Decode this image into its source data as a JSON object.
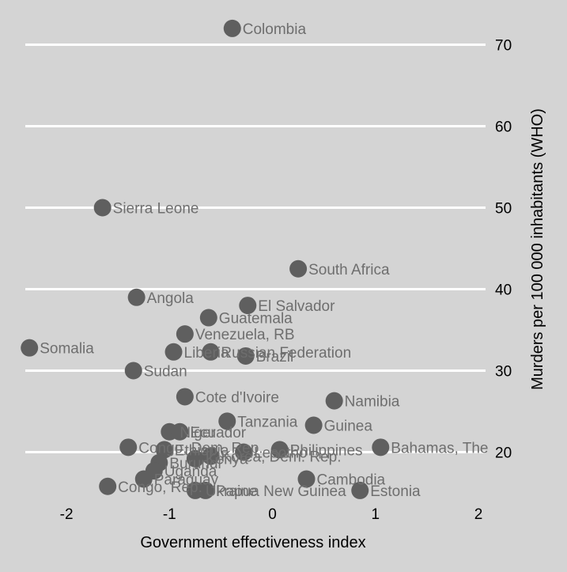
{
  "colors": {
    "background": "#d4d4d4",
    "gridline": "#ffffff",
    "marker": "#5f5f5f",
    "label_text": "#6e6e6e",
    "axis_text": "#000000"
  },
  "chart_data": {
    "type": "scatter",
    "xlabel": "Government effectiveness index",
    "ylabel": "Murders per 100 000 inhabitants (WHO)",
    "xlim": [
      -2.4,
      2.0
    ],
    "ylim": [
      15,
      75
    ],
    "x_ticks": [
      -2,
      -1,
      0,
      1,
      2
    ],
    "y_ticks": [
      20,
      30,
      40,
      50,
      60,
      70
    ],
    "x_tick_labels": [
      "-2",
      "-1",
      "0",
      "1",
      "2"
    ],
    "y_tick_labels": [
      "20",
      "30",
      "40",
      "50",
      "60",
      "70"
    ],
    "grid": "horizontal",
    "y_axis_side": "right",
    "points": [
      {
        "label": "Colombia",
        "x": -0.39,
        "y": 72.0
      },
      {
        "label": "Sierra Leone",
        "x": -1.65,
        "y": 50.0
      },
      {
        "label": "South Africa",
        "x": 0.25,
        "y": 42.5
      },
      {
        "label": "Angola",
        "x": -1.32,
        "y": 39.0
      },
      {
        "label": "El Salvador",
        "x": -0.24,
        "y": 38.0
      },
      {
        "label": "Guatemala",
        "x": -0.62,
        "y": 36.5
      },
      {
        "label": "Venezuela, RB",
        "x": -0.85,
        "y": 34.5
      },
      {
        "label": "Somalia",
        "x": -2.36,
        "y": 32.8
      },
      {
        "label": "Liberia",
        "x": -0.96,
        "y": 32.3
      },
      {
        "label": "Russian Federation",
        "x": -0.6,
        "y": 32.3
      },
      {
        "label": "Brazil",
        "x": -0.26,
        "y": 31.8
      },
      {
        "label": "Sudan",
        "x": -1.35,
        "y": 30.0
      },
      {
        "label": "Cote d'Ivoire",
        "x": -0.85,
        "y": 26.8
      },
      {
        "label": "Namibia",
        "x": 0.6,
        "y": 26.3
      },
      {
        "label": "Tanzania",
        "x": -0.44,
        "y": 23.8
      },
      {
        "label": "Guinea",
        "x": 0.4,
        "y": 23.3
      },
      {
        "label": "Niger",
        "x": -1.0,
        "y": 22.5
      },
      {
        "label": "Ecuador",
        "x": -0.9,
        "y": 22.5
      },
      {
        "label": "Congo, Dem. Rep.",
        "x": -1.4,
        "y": 20.6
      },
      {
        "label": "Philippines",
        "x": 0.07,
        "y": 20.3
      },
      {
        "label": "Bahamas, The",
        "x": 1.05,
        "y": 20.6
      },
      {
        "label": "Ethiopia",
        "x": -1.05,
        "y": 20.3
      },
      {
        "label": "Lesotho",
        "x": -0.28,
        "y": 20.0
      },
      {
        "label": "Korea, Dem. Rep.",
        "x": -0.6,
        "y": 19.5
      },
      {
        "label": "Kenya",
        "x": -0.75,
        "y": 19.2
      },
      {
        "label": "Burundi",
        "x": -1.1,
        "y": 18.7
      },
      {
        "label": "Uganda",
        "x": -1.15,
        "y": 17.7
      },
      {
        "label": "Paraguay",
        "x": -1.25,
        "y": 16.7
      },
      {
        "label": "Cambodia",
        "x": 0.33,
        "y": 16.7
      },
      {
        "label": "Congo, Rep.",
        "x": -1.6,
        "y": 15.8
      },
      {
        "label": "Ukraine",
        "x": -0.75,
        "y": 15.3
      },
      {
        "label": "Papua New Guinea",
        "x": -0.65,
        "y": 15.3
      },
      {
        "label": "Estonia",
        "x": 0.85,
        "y": 15.3
      }
    ]
  }
}
